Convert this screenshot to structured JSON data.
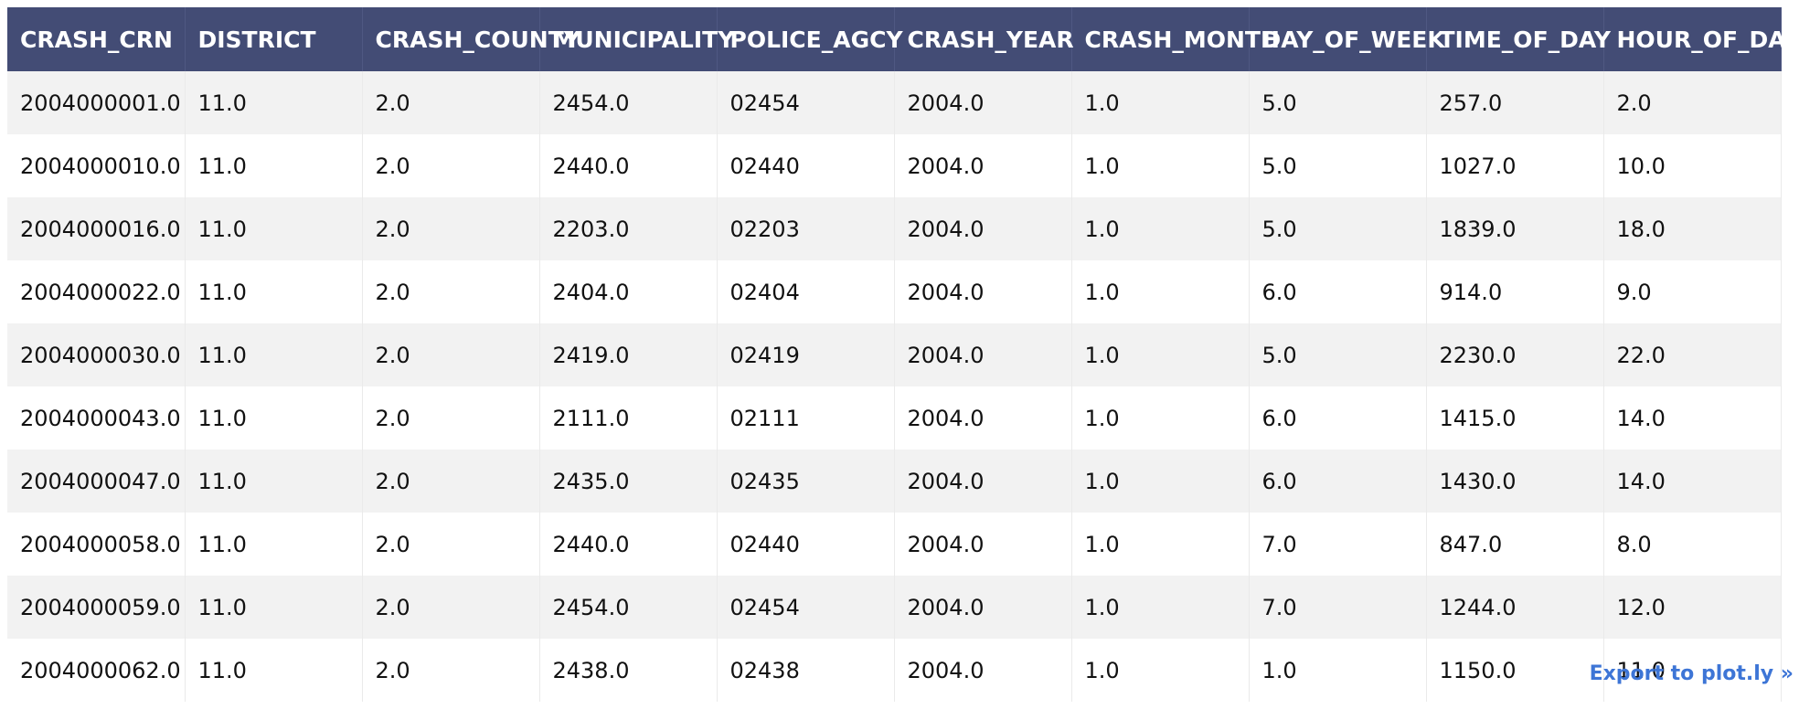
{
  "export_link": "Export to plot.ly »",
  "colors": {
    "header_bg": "#434c75",
    "header_text": "#ffffff",
    "row_stripe": "#f2f2f2",
    "link": "#3d75d6"
  },
  "chart_data": {
    "type": "table",
    "columns": [
      "CRASH_CRN",
      "DISTRICT",
      "CRASH_COUNTY",
      "MUNICIPALITY",
      "POLICE_AGCY",
      "CRASH_YEAR",
      "CRASH_MONTH",
      "DAY_OF_WEEK",
      "TIME_OF_DAY",
      "HOUR_OF_DAY"
    ],
    "rows": [
      [
        "2004000001.0",
        "11.0",
        "2.0",
        "2454.0",
        "02454",
        "2004.0",
        "1.0",
        "5.0",
        "257.0",
        "2.0"
      ],
      [
        "2004000010.0",
        "11.0",
        "2.0",
        "2440.0",
        "02440",
        "2004.0",
        "1.0",
        "5.0",
        "1027.0",
        "10.0"
      ],
      [
        "2004000016.0",
        "11.0",
        "2.0",
        "2203.0",
        "02203",
        "2004.0",
        "1.0",
        "5.0",
        "1839.0",
        "18.0"
      ],
      [
        "2004000022.0",
        "11.0",
        "2.0",
        "2404.0",
        "02404",
        "2004.0",
        "1.0",
        "6.0",
        "914.0",
        "9.0"
      ],
      [
        "2004000030.0",
        "11.0",
        "2.0",
        "2419.0",
        "02419",
        "2004.0",
        "1.0",
        "5.0",
        "2230.0",
        "22.0"
      ],
      [
        "2004000043.0",
        "11.0",
        "2.0",
        "2111.0",
        "02111",
        "2004.0",
        "1.0",
        "6.0",
        "1415.0",
        "14.0"
      ],
      [
        "2004000047.0",
        "11.0",
        "2.0",
        "2435.0",
        "02435",
        "2004.0",
        "1.0",
        "6.0",
        "1430.0",
        "14.0"
      ],
      [
        "2004000058.0",
        "11.0",
        "2.0",
        "2440.0",
        "02440",
        "2004.0",
        "1.0",
        "7.0",
        "847.0",
        "8.0"
      ],
      [
        "2004000059.0",
        "11.0",
        "2.0",
        "2454.0",
        "02454",
        "2004.0",
        "1.0",
        "7.0",
        "1244.0",
        "12.0"
      ],
      [
        "2004000062.0",
        "11.0",
        "2.0",
        "2438.0",
        "02438",
        "2004.0",
        "1.0",
        "1.0",
        "1150.0",
        "11.0"
      ]
    ]
  }
}
